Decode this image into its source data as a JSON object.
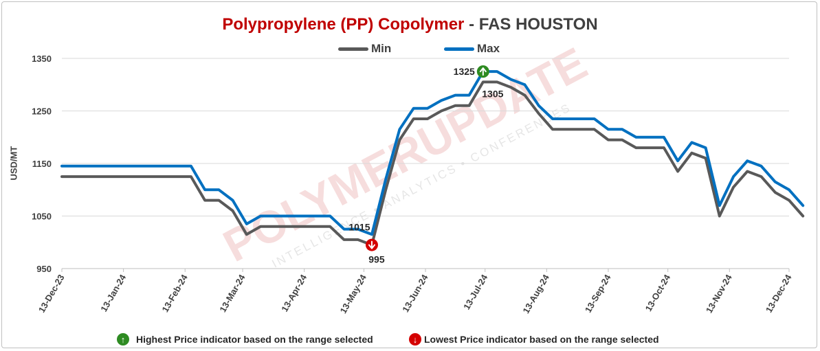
{
  "title": {
    "main": "Polypropylene (PP) Copolymer",
    "sep": " - ",
    "sub": "FAS HOUSTON"
  },
  "chart_data": {
    "type": "line",
    "ylabel": "USD/MT",
    "ylim": [
      950,
      1350
    ],
    "yticks": [
      950,
      1050,
      1150,
      1250,
      1350
    ],
    "grid": true,
    "xlim": [
      "2023-12-13",
      "2024-12-13"
    ],
    "xticks": [
      "13-Dec-23",
      "13-Jan-24",
      "13-Feb-24",
      "13-Mar-24",
      "13-Apr-24",
      "13-May-24",
      "13-Jun-24",
      "13-Jul-24",
      "13-Aug-24",
      "13-Sep-24",
      "13-Oct-24",
      "13-Nov-24",
      "13-Dec-24"
    ],
    "legend_position": "top-center",
    "series": [
      {
        "name": "Min",
        "color": "#595959",
        "points": [
          [
            "2023-12-13",
            1125
          ],
          [
            "2024-02-16",
            1125
          ],
          [
            "2024-02-23",
            1080
          ],
          [
            "2024-03-01",
            1080
          ],
          [
            "2024-03-08",
            1060
          ],
          [
            "2024-03-15",
            1015
          ],
          [
            "2024-03-22",
            1030
          ],
          [
            "2024-04-12",
            1030
          ],
          [
            "2024-04-26",
            1030
          ],
          [
            "2024-05-03",
            1005
          ],
          [
            "2024-05-10",
            1005
          ],
          [
            "2024-05-17",
            995
          ],
          [
            "2024-05-24",
            1100
          ],
          [
            "2024-05-31",
            1195
          ],
          [
            "2024-06-07",
            1235
          ],
          [
            "2024-06-14",
            1235
          ],
          [
            "2024-06-21",
            1250
          ],
          [
            "2024-06-28",
            1260
          ],
          [
            "2024-07-05",
            1260
          ],
          [
            "2024-07-12",
            1305
          ],
          [
            "2024-07-19",
            1305
          ],
          [
            "2024-07-26",
            1295
          ],
          [
            "2024-08-02",
            1280
          ],
          [
            "2024-08-09",
            1245
          ],
          [
            "2024-08-16",
            1215
          ],
          [
            "2024-08-30",
            1215
          ],
          [
            "2024-09-06",
            1215
          ],
          [
            "2024-09-13",
            1195
          ],
          [
            "2024-09-20",
            1195
          ],
          [
            "2024-09-27",
            1180
          ],
          [
            "2024-10-04",
            1180
          ],
          [
            "2024-10-11",
            1180
          ],
          [
            "2024-10-18",
            1135
          ],
          [
            "2024-10-25",
            1170
          ],
          [
            "2024-11-01",
            1160
          ],
          [
            "2024-11-08",
            1050
          ],
          [
            "2024-11-15",
            1105
          ],
          [
            "2024-11-22",
            1135
          ],
          [
            "2024-11-29",
            1125
          ],
          [
            "2024-12-06",
            1095
          ],
          [
            "2024-12-13",
            1080
          ],
          [
            "2024-12-20",
            1050
          ]
        ]
      },
      {
        "name": "Max",
        "color": "#0070c0",
        "points": [
          [
            "2023-12-13",
            1145
          ],
          [
            "2024-02-16",
            1145
          ],
          [
            "2024-02-23",
            1100
          ],
          [
            "2024-03-01",
            1100
          ],
          [
            "2024-03-08",
            1080
          ],
          [
            "2024-03-15",
            1035
          ],
          [
            "2024-03-22",
            1050
          ],
          [
            "2024-04-12",
            1050
          ],
          [
            "2024-04-26",
            1050
          ],
          [
            "2024-05-03",
            1025
          ],
          [
            "2024-05-10",
            1025
          ],
          [
            "2024-05-17",
            1015
          ],
          [
            "2024-05-24",
            1120
          ],
          [
            "2024-05-31",
            1215
          ],
          [
            "2024-06-07",
            1255
          ],
          [
            "2024-06-14",
            1255
          ],
          [
            "2024-06-21",
            1270
          ],
          [
            "2024-06-28",
            1280
          ],
          [
            "2024-07-05",
            1280
          ],
          [
            "2024-07-12",
            1325
          ],
          [
            "2024-07-19",
            1325
          ],
          [
            "2024-07-26",
            1310
          ],
          [
            "2024-08-02",
            1300
          ],
          [
            "2024-08-09",
            1260
          ],
          [
            "2024-08-16",
            1235
          ],
          [
            "2024-08-30",
            1235
          ],
          [
            "2024-09-06",
            1235
          ],
          [
            "2024-09-13",
            1215
          ],
          [
            "2024-09-20",
            1215
          ],
          [
            "2024-09-27",
            1200
          ],
          [
            "2024-10-04",
            1200
          ],
          [
            "2024-10-11",
            1200
          ],
          [
            "2024-10-18",
            1155
          ],
          [
            "2024-10-25",
            1190
          ],
          [
            "2024-11-01",
            1180
          ],
          [
            "2024-11-08",
            1070
          ],
          [
            "2024-11-15",
            1125
          ],
          [
            "2024-11-22",
            1155
          ],
          [
            "2024-11-29",
            1145
          ],
          [
            "2024-12-06",
            1115
          ],
          [
            "2024-12-13",
            1100
          ],
          [
            "2024-12-20",
            1070
          ]
        ]
      }
    ],
    "annotations": [
      {
        "type": "high",
        "date": "2024-07-12",
        "value": 1325,
        "label": "1325",
        "secondary_label": "1305",
        "secondary_value": 1305
      },
      {
        "type": "low",
        "date": "2024-05-17",
        "value": 995,
        "label": "995",
        "secondary_label": "1015",
        "secondary_value": 1015
      }
    ]
  },
  "watermark": {
    "brand": "POLYMERUPDATE",
    "tagline": "INTELLIGENCE • ANALYTICS • CONFERENCES"
  },
  "footer": {
    "high_text": "Highest Price indicator based on the range selected",
    "low_text": "Lowest Price indicator based on the range selected"
  }
}
